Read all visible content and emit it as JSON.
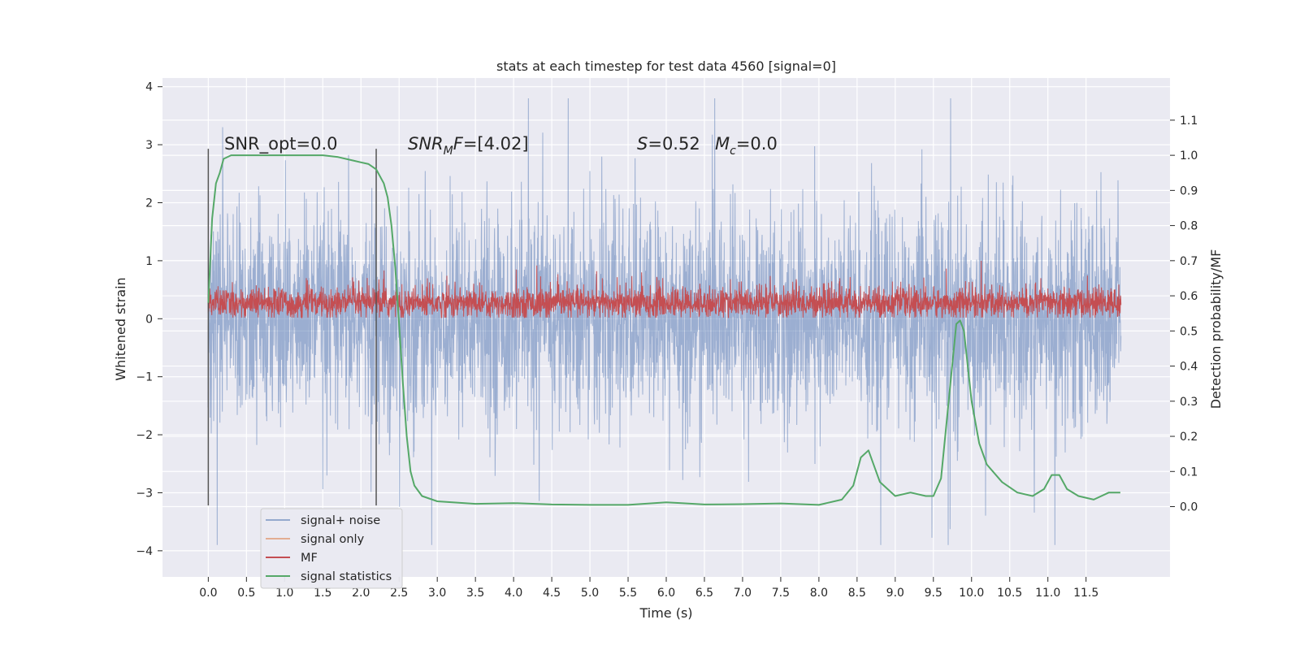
{
  "chart_data": {
    "type": "line",
    "title": "stats at each timestep for test data 4560 [signal=0]",
    "xlabel": "Time (s)",
    "ylabel_left": "Whitened strain",
    "ylabel_right": "Detection probability/MF",
    "xlim": [
      -0.6,
      12.6
    ],
    "ylim_left": [
      -4.45,
      4.15
    ],
    "ylim_right": [
      -0.2,
      1.22
    ],
    "x_ticks": [
      "0.0",
      "0.5",
      "1.0",
      "1.5",
      "2.0",
      "2.5",
      "3.0",
      "3.5",
      "4.0",
      "4.5",
      "5.0",
      "5.5",
      "6.0",
      "6.5",
      "7.0",
      "7.5",
      "8.0",
      "8.5",
      "9.0",
      "9.5",
      "10.0",
      "10.5",
      "11.0",
      "11.5"
    ],
    "y_ticks_left": [
      "−4",
      "−3",
      "−2",
      "−1",
      "0",
      "1",
      "2",
      "3",
      "4"
    ],
    "y_ticks_right": [
      "0.0",
      "0.1",
      "0.2",
      "0.3",
      "0.4",
      "0.5",
      "0.6",
      "0.7",
      "0.8",
      "0.9",
      "1.0",
      "1.1"
    ],
    "annotations": {
      "snr_opt": "SNR_opt=0.0",
      "snr_mf_main": "SNR",
      "snr_mf_sub": "M",
      "snr_mf_rest": "F=[4.02]",
      "s_main": "S",
      "s_rest": "=0.52",
      "mc_main": "M",
      "mc_sub": "c",
      "mc_rest": "=0.0"
    },
    "window_markers_x": [
      0.0,
      2.2
    ],
    "series": [
      {
        "name": "signal+ noise",
        "color": "#4c72b0",
        "opacity": 0.5,
        "description_range": [
          -4.0,
          4.0
        ],
        "x_range": [
          0.0,
          11.95
        ]
      },
      {
        "name": "signal only",
        "color": "#dd8452",
        "values": []
      },
      {
        "name": "MF",
        "color": "#c44e52",
        "x_range": [
          0.0,
          11.95
        ]
      },
      {
        "name": "signal statistics",
        "color": "#55a868",
        "x": [
          0.0,
          0.05,
          0.1,
          0.15,
          0.2,
          0.3,
          0.5,
          1.0,
          1.5,
          1.7,
          1.9,
          2.0,
          2.1,
          2.2,
          2.3,
          2.35,
          2.4,
          2.45,
          2.5,
          2.55,
          2.6,
          2.65,
          2.7,
          2.8,
          3.0,
          3.5,
          4.0,
          4.5,
          5.0,
          5.5,
          6.0,
          6.2,
          6.5,
          7.0,
          7.5,
          8.0,
          8.3,
          8.45,
          8.55,
          8.65,
          8.8,
          9.0,
          9.2,
          9.4,
          9.5,
          9.6,
          9.7,
          9.8,
          9.85,
          9.9,
          10.0,
          10.1,
          10.2,
          10.4,
          10.6,
          10.8,
          10.95,
          11.05,
          11.15,
          11.25,
          11.4,
          11.6,
          11.8,
          11.95
        ],
        "y": [
          0.58,
          0.82,
          0.92,
          0.95,
          0.99,
          1.0,
          1.0,
          1.0,
          1.0,
          0.995,
          0.985,
          0.98,
          0.975,
          0.96,
          0.92,
          0.88,
          0.8,
          0.68,
          0.52,
          0.35,
          0.2,
          0.1,
          0.06,
          0.03,
          0.015,
          0.008,
          0.01,
          0.006,
          0.005,
          0.005,
          0.012,
          0.01,
          0.006,
          0.007,
          0.009,
          0.005,
          0.02,
          0.06,
          0.14,
          0.16,
          0.07,
          0.03,
          0.04,
          0.03,
          0.03,
          0.08,
          0.3,
          0.52,
          0.53,
          0.5,
          0.3,
          0.18,
          0.12,
          0.07,
          0.04,
          0.03,
          0.05,
          0.09,
          0.09,
          0.05,
          0.03,
          0.02,
          0.04,
          0.04
        ]
      }
    ],
    "grid": true,
    "legend_position": "lower-left"
  }
}
